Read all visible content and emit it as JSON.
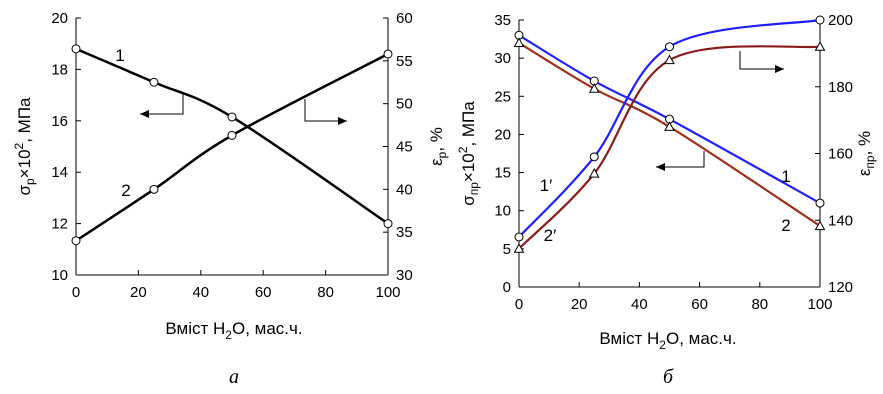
{
  "chart_data": [
    {
      "type": "line",
      "panel_label": "а",
      "xlabel_main": "Вміст H",
      "xlabel_sub": "2",
      "xlabel_tail": "O, мас.ч.",
      "ylabel_left": {
        "sym": "σ",
        "sub": "р",
        "mid": "×10",
        "sup": "2",
        "tail": ", МПа"
      },
      "ylabel_right": {
        "sym": "ε",
        "sub": "р",
        "tail": ", %"
      },
      "xlim": [
        0,
        100
      ],
      "ylim_left": [
        10,
        20
      ],
      "ylim_right": [
        30,
        60
      ],
      "x_ticks": [
        0,
        20,
        40,
        60,
        80,
        100
      ],
      "y_left_ticks": [
        10,
        12,
        14,
        16,
        18,
        20
      ],
      "y_right_ticks": [
        30,
        35,
        40,
        45,
        50,
        55,
        60
      ],
      "series": [
        {
          "name": "1",
          "axis": "left",
          "x": [
            0,
            25,
            50,
            100
          ],
          "y": [
            18.8,
            17.5,
            16.15,
            12.0
          ],
          "color": "#000000",
          "marker": "circle"
        },
        {
          "name": "2",
          "axis": "right",
          "x": [
            0,
            25,
            50,
            100
          ],
          "y": [
            34.0,
            40.0,
            46.3,
            55.8
          ],
          "color": "#000000",
          "marker": "circle"
        }
      ]
    },
    {
      "type": "line",
      "panel_label": "б",
      "xlabel_main": "Вміст H",
      "xlabel_sub": "2",
      "xlabel_tail": "O, мас.ч.",
      "ylabel_left": {
        "sym": "σ",
        "sub": "пр",
        "mid": "×10",
        "sup": "2",
        "tail": ", МПа"
      },
      "ylabel_right": {
        "sym": "ε",
        "sub": "пр",
        "tail": ", %"
      },
      "xlim": [
        0,
        100
      ],
      "ylim_left": [
        0,
        35
      ],
      "ylim_right": [
        120,
        200
      ],
      "x_ticks": [
        0,
        20,
        40,
        60,
        80,
        100
      ],
      "y_left_ticks": [
        0,
        5,
        10,
        15,
        20,
        25,
        30,
        35
      ],
      "y_right_ticks": [
        120,
        140,
        160,
        180,
        200
      ],
      "series": [
        {
          "name": "1",
          "axis": "left",
          "x": [
            0,
            25,
            50,
            100
          ],
          "y": [
            33.0,
            27.0,
            22.0,
            11.0
          ],
          "color": "#1f1fff",
          "marker": "circle"
        },
        {
          "name": "2",
          "axis": "left",
          "x": [
            0,
            25,
            50,
            100
          ],
          "y": [
            32.0,
            26.0,
            21.0,
            8.0
          ],
          "color": "#a0301c",
          "marker": "triangle"
        },
        {
          "name": "1′",
          "axis": "right",
          "x": [
            0,
            25,
            50,
            100
          ],
          "y": [
            135.0,
            159.0,
            192.0,
            200.0
          ],
          "color": "#1f1fff",
          "marker": "circle"
        },
        {
          "name": "2′",
          "axis": "right",
          "x": [
            0,
            25,
            50,
            100
          ],
          "y": [
            131.5,
            154.0,
            188.0,
            192.0
          ],
          "color": "#8b1a1a",
          "marker": "triangle"
        }
      ]
    }
  ]
}
